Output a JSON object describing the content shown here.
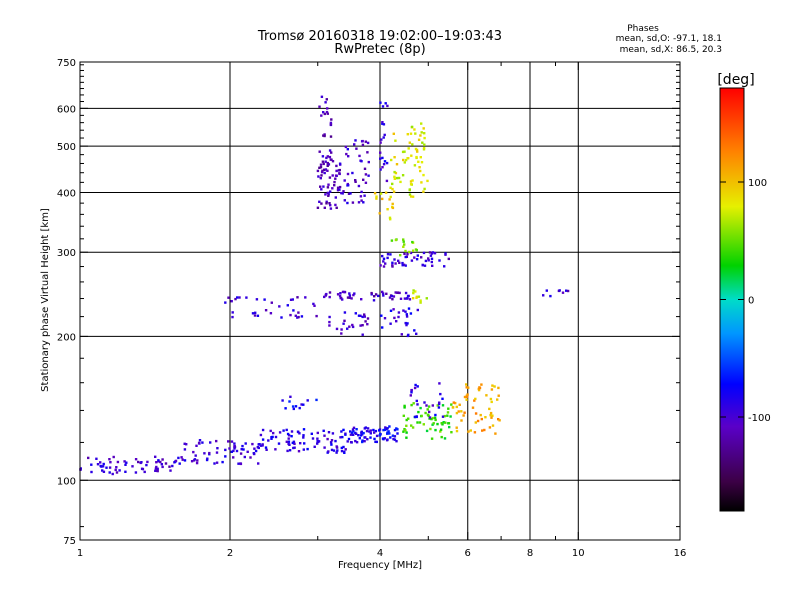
{
  "chart_data": {
    "type": "scatter",
    "title": "Tromsø 20160318 19:02:00–19:03:43",
    "subtitle": "RwPretec (8p)",
    "xlabel": "Frequency [MHz]",
    "ylabel": "Stationary phase Virtual Height [km]",
    "x_scale": "log",
    "y_scale": "log",
    "xlim": [
      1,
      16
    ],
    "ylim": [
      75,
      750
    ],
    "grid": true,
    "x_ticks": [
      {
        "value": 1,
        "label": "1"
      },
      {
        "value": 2,
        "label": "2"
      },
      {
        "value": 4,
        "label": "4"
      },
      {
        "value": 6,
        "label": "6"
      },
      {
        "value": 8,
        "label": "8"
      },
      {
        "value": 10,
        "label": "10"
      },
      {
        "value": 16,
        "label": "16"
      }
    ],
    "x_minor_ticks": [
      3,
      5,
      7,
      9
    ],
    "x_grid": [
      2,
      4,
      6,
      8,
      10
    ],
    "y_ticks": [
      {
        "value": 75,
        "label": "75"
      },
      {
        "value": 100,
        "label": "100"
      },
      {
        "value": 200,
        "label": "200"
      },
      {
        "value": 300,
        "label": "300"
      },
      {
        "value": 400,
        "label": "400"
      },
      {
        "value": 500,
        "label": "500"
      },
      {
        "value": 600,
        "label": "600"
      },
      {
        "value": 750,
        "label": "750"
      }
    ],
    "y_grid": [
      100,
      200,
      300,
      400,
      500,
      600
    ],
    "phases_box": {
      "title": "Phases",
      "line_o": "mean, sd,O: -97.1, 18.1",
      "line_x": "mean, sd,X:  86.5, 20.3"
    },
    "colorbar": {
      "label": "[deg]",
      "range": [
        -180,
        180
      ],
      "ticks": [
        {
          "value": 100,
          "label": "100"
        },
        {
          "value": 0,
          "label": "0"
        },
        {
          "value": -100,
          "label": "-100"
        }
      ]
    },
    "clusters": [
      {
        "x": [
          1.0,
          1.55
        ],
        "y": [
          103,
          112
        ],
        "phase": -100,
        "n": 60
      },
      {
        "x": [
          1.55,
          2.3
        ],
        "y": [
          108,
          122
        ],
        "phase": -95,
        "n": 70
      },
      {
        "x": [
          2.3,
          3.5
        ],
        "y": [
          114,
          128
        ],
        "phase": -90,
        "n": 90
      },
      {
        "x": [
          3.5,
          4.4
        ],
        "y": [
          120,
          130
        ],
        "phase": -80,
        "n": 70
      },
      {
        "x": [
          4.4,
          5.6
        ],
        "y": [
          122,
          145
        ],
        "phase": 40,
        "n": 60
      },
      {
        "x": [
          5.6,
          7.0
        ],
        "y": [
          125,
          160
        ],
        "phase": 110,
        "n": 60
      },
      {
        "x": [
          4.6,
          5.4
        ],
        "y": [
          135,
          160
        ],
        "phase": -90,
        "n": 25
      },
      {
        "x": [
          2.5,
          3.0
        ],
        "y": [
          140,
          150
        ],
        "phase": -80,
        "n": 12
      },
      {
        "x": [
          3.0,
          3.4
        ],
        "y": [
          370,
          470
        ],
        "phase": -110,
        "n": 70
      },
      {
        "x": [
          3.4,
          3.8
        ],
        "y": [
          380,
          520
        ],
        "phase": -100,
        "n": 40
      },
      {
        "x": [
          3.0,
          3.2
        ],
        "y": [
          470,
          640
        ],
        "phase": -110,
        "n": 25
      },
      {
        "x": [
          4.0,
          4.15
        ],
        "y": [
          420,
          620
        ],
        "phase": -90,
        "n": 20
      },
      {
        "x": [
          4.2,
          5.0
        ],
        "y": [
          390,
          560
        ],
        "phase": 80,
        "n": 70
      },
      {
        "x": [
          3.9,
          4.3
        ],
        "y": [
          350,
          400
        ],
        "phase": 90,
        "n": 15
      },
      {
        "x": [
          4.0,
          5.5
        ],
        "y": [
          280,
          300
        ],
        "phase": -100,
        "n": 50
      },
      {
        "x": [
          4.2,
          4.8
        ],
        "y": [
          295,
          320
        ],
        "phase": 60,
        "n": 15
      },
      {
        "x": [
          1.95,
          3.0
        ],
        "y": [
          218,
          242
        ],
        "phase": -100,
        "n": 35
      },
      {
        "x": [
          3.0,
          4.6
        ],
        "y": [
          238,
          248
        ],
        "phase": -105,
        "n": 50
      },
      {
        "x": [
          3.1,
          3.8
        ],
        "y": [
          198,
          225
        ],
        "phase": -100,
        "n": 25
      },
      {
        "x": [
          4.0,
          4.8
        ],
        "y": [
          200,
          230
        ],
        "phase": -90,
        "n": 25
      },
      {
        "x": [
          4.6,
          5.0
        ],
        "y": [
          235,
          250
        ],
        "phase": 80,
        "n": 10
      },
      {
        "x": [
          8.5,
          9.6
        ],
        "y": [
          242,
          250
        ],
        "phase": -100,
        "n": 8
      }
    ]
  }
}
